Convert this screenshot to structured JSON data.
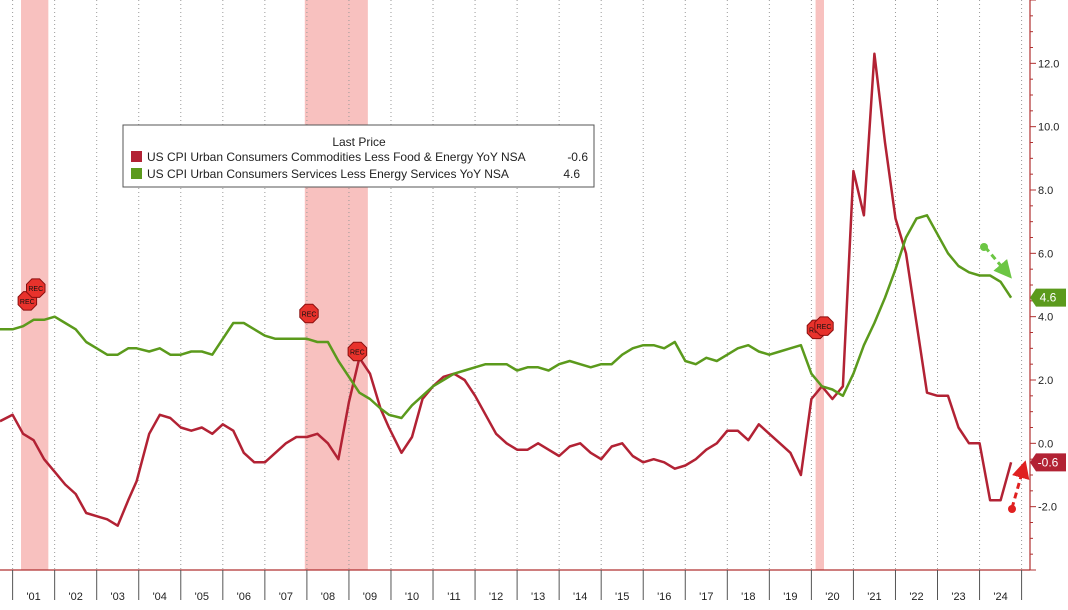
{
  "chart_data": {
    "type": "line",
    "title": "",
    "legend": {
      "header": "Last Price",
      "placement": "top-left",
      "entries": [
        {
          "name": "US CPI Urban Consumers Commodities Less Food & Energy YoY NSA",
          "last": "-0.6",
          "color": "#b22234"
        },
        {
          "name": "US CPI Urban Consumers Services Less Energy Services YoY NSA",
          "last": "4.6",
          "color": "#5b9a1c"
        }
      ]
    },
    "x_labels": [
      "'01",
      "'02",
      "'03",
      "'04",
      "'05",
      "'06",
      "'07",
      "'08",
      "'09",
      "'10",
      "'11",
      "'12",
      "'13",
      "'14",
      "'15",
      "'16",
      "'17",
      "'18",
      "'19",
      "'20",
      "'21",
      "'22",
      "'23",
      "'24"
    ],
    "xlim": [
      2000.7,
      2025.2
    ],
    "y_axis": {
      "position": "right",
      "ylim": [
        -4.0,
        14.0
      ],
      "ticks": [
        -2.0,
        0.0,
        2.0,
        4.0,
        6.0,
        8.0,
        10.0,
        12.0
      ],
      "tick_labels": [
        "-2.0",
        "0.0",
        "2.0",
        "4.0",
        "6.0",
        "8.0",
        "10.0",
        "12.0"
      ]
    },
    "grid": "vertical dotted",
    "recessions": [
      [
        2001.2,
        2001.85
      ],
      [
        2007.95,
        2009.45
      ],
      [
        2020.1,
        2020.3
      ]
    ],
    "rec_label": "REC",
    "rec_markers": [
      {
        "x": 2001.35,
        "y": 4.5
      },
      {
        "x": 2001.55,
        "y": 4.9
      },
      {
        "x": 2008.05,
        "y": 4.1
      },
      {
        "x": 2009.2,
        "y": 2.9
      },
      {
        "x": 2020.12,
        "y": 3.6
      },
      {
        "x": 2020.3,
        "y": 3.7
      }
    ],
    "last_value_tags": [
      {
        "label": "4.6",
        "y": 4.6,
        "color": "#5b9a1c"
      },
      {
        "label": "-0.6",
        "y": -0.6,
        "color": "#b22234"
      }
    ],
    "series": [
      {
        "name": "US CPI Urban Consumers Commodities Less Food & Energy YoY NSA",
        "color": "#b22234",
        "x": [
          2000.7,
          2001.0,
          2001.25,
          2001.5,
          2001.75,
          2002.0,
          2002.25,
          2002.5,
          2002.75,
          2003.0,
          2003.25,
          2003.5,
          2003.75,
          2003.95,
          2004.25,
          2004.5,
          2004.75,
          2005.0,
          2005.25,
          2005.5,
          2005.75,
          2006.0,
          2006.25,
          2006.5,
          2006.75,
          2007.0,
          2007.25,
          2007.5,
          2007.75,
          2008.0,
          2008.25,
          2008.5,
          2008.75,
          2009.0,
          2009.25,
          2009.5,
          2009.75,
          2009.95,
          2010.25,
          2010.5,
          2010.75,
          2011.0,
          2011.25,
          2011.5,
          2011.75,
          2012.0,
          2012.25,
          2012.5,
          2012.75,
          2013.0,
          2013.25,
          2013.5,
          2013.75,
          2014.0,
          2014.25,
          2014.5,
          2014.75,
          2015.0,
          2015.25,
          2015.5,
          2015.75,
          2016.0,
          2016.25,
          2016.5,
          2016.75,
          2017.0,
          2017.25,
          2017.5,
          2017.75,
          2018.0,
          2018.25,
          2018.5,
          2018.75,
          2019.0,
          2019.25,
          2019.5,
          2019.75,
          2020.0,
          2020.25,
          2020.5,
          2020.75,
          2021.0,
          2021.25,
          2021.5,
          2021.75,
          2022.0,
          2022.25,
          2022.5,
          2022.75,
          2023.0,
          2023.25,
          2023.5,
          2023.75,
          2024.0,
          2024.25,
          2024.5,
          2024.75
        ],
        "y": [
          0.7,
          0.9,
          0.3,
          0.1,
          -0.5,
          -0.9,
          -1.3,
          -1.6,
          -2.2,
          -2.3,
          -2.4,
          -2.6,
          -1.8,
          -1.2,
          0.3,
          0.9,
          0.8,
          0.5,
          0.4,
          0.5,
          0.3,
          0.6,
          0.4,
          -0.3,
          -0.6,
          -0.6,
          -0.3,
          0.0,
          0.2,
          0.2,
          0.3,
          0.0,
          -0.5,
          1.3,
          2.7,
          2.2,
          1.1,
          0.5,
          -0.3,
          0.2,
          1.4,
          1.8,
          2.1,
          2.2,
          2.0,
          1.5,
          0.9,
          0.3,
          0.0,
          -0.2,
          -0.2,
          0.0,
          -0.2,
          -0.4,
          -0.1,
          0.0,
          -0.3,
          -0.5,
          -0.1,
          0.0,
          -0.4,
          -0.6,
          -0.5,
          -0.6,
          -0.8,
          -0.7,
          -0.5,
          -0.2,
          0.0,
          0.4,
          0.4,
          0.1,
          0.6,
          0.3,
          0.0,
          -0.3,
          -1.0,
          1.4,
          1.8,
          1.4,
          1.8,
          8.6,
          7.2,
          12.3,
          9.5,
          7.1,
          6.0,
          3.8,
          1.6,
          1.5,
          1.5,
          0.5,
          0.0,
          0.0,
          -1.8,
          -1.8,
          -0.6
        ]
      },
      {
        "name": "US CPI Urban Consumers Services Less Energy Services YoY NSA",
        "color": "#5b9a1c",
        "x": [
          2000.7,
          2001.0,
          2001.25,
          2001.5,
          2001.75,
          2002.0,
          2002.25,
          2002.5,
          2002.75,
          2003.0,
          2003.25,
          2003.5,
          2003.75,
          2003.95,
          2004.25,
          2004.5,
          2004.75,
          2005.0,
          2005.25,
          2005.5,
          2005.75,
          2006.0,
          2006.25,
          2006.5,
          2006.75,
          2007.0,
          2007.25,
          2007.5,
          2007.75,
          2008.0,
          2008.25,
          2008.5,
          2008.75,
          2009.0,
          2009.25,
          2009.5,
          2009.75,
          2009.95,
          2010.25,
          2010.5,
          2010.75,
          2011.0,
          2011.25,
          2011.5,
          2011.75,
          2012.0,
          2012.25,
          2012.5,
          2012.75,
          2013.0,
          2013.25,
          2013.5,
          2013.75,
          2014.0,
          2014.25,
          2014.5,
          2014.75,
          2015.0,
          2015.25,
          2015.5,
          2015.75,
          2016.0,
          2016.25,
          2016.5,
          2016.75,
          2017.0,
          2017.25,
          2017.5,
          2017.75,
          2018.0,
          2018.25,
          2018.5,
          2018.75,
          2019.0,
          2019.25,
          2019.5,
          2019.75,
          2020.0,
          2020.25,
          2020.5,
          2020.75,
          2021.0,
          2021.25,
          2021.5,
          2021.75,
          2022.0,
          2022.25,
          2022.5,
          2022.75,
          2023.0,
          2023.25,
          2023.5,
          2023.75,
          2024.0,
          2024.25,
          2024.5,
          2024.75
        ],
        "y": [
          3.6,
          3.6,
          3.7,
          3.9,
          3.9,
          4.0,
          3.8,
          3.6,
          3.2,
          3.0,
          2.8,
          2.8,
          3.0,
          3.0,
          2.9,
          3.0,
          2.8,
          2.8,
          2.9,
          2.9,
          2.8,
          3.3,
          3.8,
          3.8,
          3.6,
          3.4,
          3.3,
          3.3,
          3.3,
          3.3,
          3.2,
          3.2,
          2.6,
          2.1,
          1.6,
          1.4,
          1.1,
          0.9,
          0.8,
          1.2,
          1.5,
          1.8,
          2.0,
          2.2,
          2.3,
          2.4,
          2.5,
          2.5,
          2.5,
          2.3,
          2.4,
          2.4,
          2.3,
          2.5,
          2.6,
          2.5,
          2.4,
          2.5,
          2.5,
          2.8,
          3.0,
          3.1,
          3.1,
          3.0,
          3.2,
          2.6,
          2.5,
          2.7,
          2.6,
          2.8,
          3.0,
          3.1,
          2.9,
          2.8,
          2.9,
          3.0,
          3.1,
          2.2,
          1.8,
          1.7,
          1.5,
          2.2,
          3.1,
          3.8,
          4.6,
          5.5,
          6.5,
          7.1,
          7.2,
          6.6,
          6.0,
          5.6,
          5.4,
          5.3,
          5.3,
          5.1,
          4.6
        ]
      }
    ]
  }
}
